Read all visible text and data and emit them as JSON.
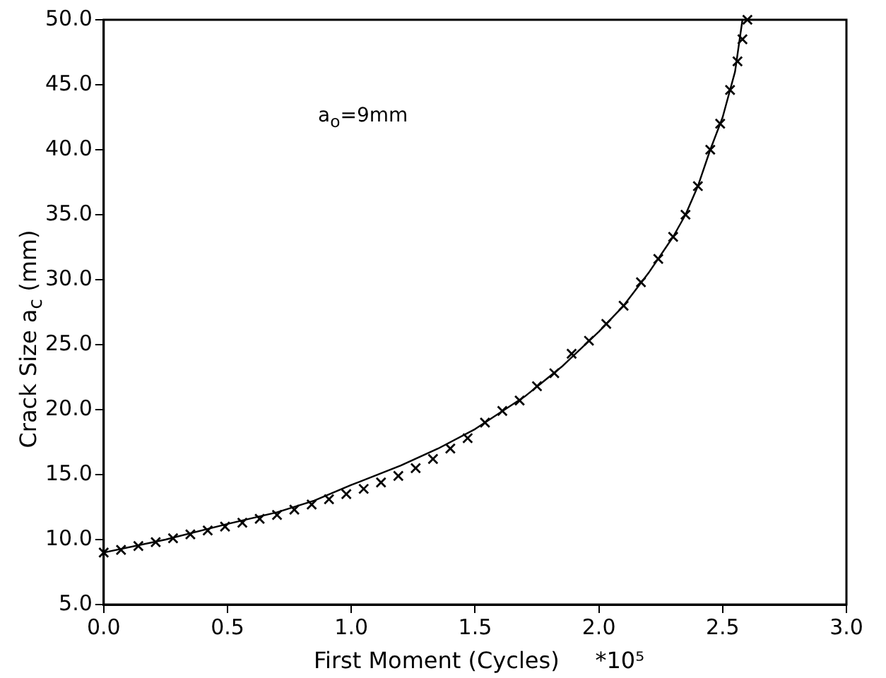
{
  "chart_data": {
    "type": "line",
    "xlabel": "First Moment (Cycles)     *10⁵",
    "ylabel": "Crack Size a$_{c}$ (mm)",
    "annotations": [
      "a$_{o}$=9mm"
    ],
    "xlim": [
      0,
      3
    ],
    "ylim": [
      5,
      50
    ],
    "xticks": [
      {
        "value": 0,
        "label": "0.0"
      },
      {
        "value": 0.5,
        "label": "0.5"
      },
      {
        "value": 1,
        "label": "1.0"
      },
      {
        "value": 1.5,
        "label": "1.5"
      },
      {
        "value": 2,
        "label": "2.0"
      },
      {
        "value": 2.5,
        "label": "2.5"
      },
      {
        "value": 3,
        "label": "3.0"
      }
    ],
    "yticks": [
      {
        "value": 5,
        "label": "5.0"
      },
      {
        "value": 10,
        "label": "10.0"
      },
      {
        "value": 15,
        "label": "15.0"
      },
      {
        "value": 20,
        "label": "20.0"
      },
      {
        "value": 25,
        "label": "25.0"
      },
      {
        "value": 30,
        "label": "30.0"
      },
      {
        "value": 35,
        "label": "35.0"
      },
      {
        "value": 40,
        "label": "40.0"
      },
      {
        "value": 45,
        "label": "45.0"
      },
      {
        "value": 50,
        "label": "50.0"
      }
    ],
    "grid": false,
    "legend": false,
    "series": [
      {
        "color": "#000000",
        "marker": "none",
        "line_style": "solid",
        "x": [
          0,
          0.25,
          0.5,
          0.7,
          0.85,
          1.0,
          1.2,
          1.35,
          1.5,
          1.7,
          1.85,
          2.0,
          2.1,
          2.2,
          2.3,
          2.35,
          2.4,
          2.45,
          2.5,
          2.55,
          2.58
        ],
        "values": [
          9,
          10,
          11.2,
          12.1,
          13,
          14.2,
          15.7,
          17,
          18.5,
          21,
          23.3,
          26,
          28,
          30.5,
          33.3,
          35,
          37.2,
          40,
          42.5,
          46,
          50
        ]
      },
      {
        "type": "scatter",
        "color": "#000000",
        "marker": "cross",
        "x": [
          0,
          0.07,
          0.14,
          0.21,
          0.28,
          0.35,
          0.42,
          0.49,
          0.56,
          0.63,
          0.7,
          0.77,
          0.84,
          0.91,
          0.98,
          1.05,
          1.12,
          1.19,
          1.26,
          1.33,
          1.4,
          1.47,
          1.54,
          1.61,
          1.68,
          1.75,
          1.82,
          1.89,
          1.96,
          2.03,
          2.1,
          2.17,
          2.24,
          2.3,
          2.35,
          2.4,
          2.45,
          2.49,
          2.53,
          2.56,
          2.58,
          2.6
        ],
        "values": [
          9,
          9.2,
          9.5,
          9.8,
          10.1,
          10.4,
          10.7,
          11,
          11.3,
          11.6,
          11.9,
          12.3,
          12.7,
          13.1,
          13.5,
          13.9,
          14.4,
          14.9,
          15.5,
          16.2,
          17,
          17.8,
          19,
          19.9,
          20.7,
          21.8,
          22.8,
          24.3,
          25.3,
          26.6,
          28,
          29.8,
          31.6,
          33.3,
          35,
          37.2,
          40,
          42,
          44.6,
          46.8,
          48.5,
          50
        ]
      }
    ]
  }
}
